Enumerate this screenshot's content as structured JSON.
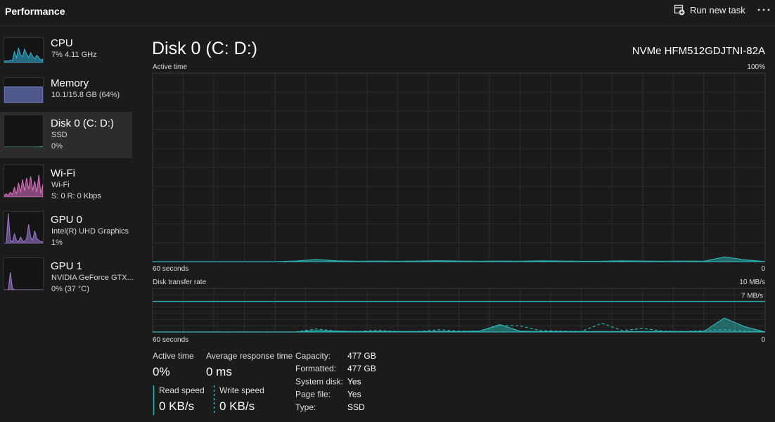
{
  "header": {
    "title": "Performance",
    "run_task": "Run new task"
  },
  "sidebar": [
    {
      "name": "CPU",
      "details": [
        "7%  4.11 GHz"
      ],
      "color": "#35b3d8",
      "spark": [
        5,
        8,
        6,
        10,
        7,
        45,
        20,
        60,
        30,
        25,
        55,
        35,
        20,
        40,
        25,
        15,
        30,
        20,
        10,
        15
      ]
    },
    {
      "name": "Memory",
      "details": [
        "10.1/15.8 GB (64%)"
      ],
      "color": "#7d8ee6",
      "spark": [
        64,
        64,
        64,
        64,
        64,
        64,
        64,
        64,
        64,
        64,
        64,
        64,
        64,
        64,
        64,
        64,
        64,
        64,
        64,
        64
      ]
    },
    {
      "name": "Disk 0 (C: D:)",
      "details": [
        "SSD",
        "0%"
      ],
      "color": "#3ba88f",
      "selected": true,
      "spark": [
        0,
        0,
        0,
        0,
        0,
        0,
        0,
        0,
        0,
        0,
        0,
        0,
        0,
        0,
        0,
        0,
        0,
        0,
        1,
        0
      ]
    },
    {
      "name": "Wi-Fi",
      "details": [
        "Wi-Fi",
        "S: 0 R: 0 Kbps"
      ],
      "color": "#e072c6",
      "spark": [
        5,
        10,
        5,
        15,
        8,
        30,
        10,
        45,
        15,
        55,
        20,
        60,
        25,
        65,
        20,
        50,
        15,
        70,
        10,
        40
      ]
    },
    {
      "name": "GPU 0",
      "details": [
        "Intel(R) UHD Graphics",
        "1%"
      ],
      "color": "#a07ad8",
      "spark": [
        0,
        0,
        95,
        10,
        5,
        30,
        10,
        5,
        20,
        8,
        5,
        15,
        60,
        20,
        10,
        40,
        15,
        10,
        5,
        5
      ]
    },
    {
      "name": "GPU 1",
      "details": [
        "NVIDIA GeForce GTX...",
        "0%  (37 °C)"
      ],
      "color": "#a07ad8",
      "spark": [
        0,
        0,
        0,
        55,
        5,
        0,
        0,
        0,
        0,
        0,
        0,
        0,
        0,
        0,
        0,
        0,
        0,
        0,
        0,
        0
      ]
    }
  ],
  "disk": {
    "title": "Disk 0 (C: D:)",
    "model": "NVMe HFM512GDJTNI-82A",
    "active_chart": {
      "label": "Active time",
      "max_label": "100%",
      "time_label": "60 seconds",
      "min_label": "0",
      "ylim": [
        0,
        100
      ],
      "color": "#2bb3b3",
      "values": [
        0,
        0,
        0,
        0,
        0,
        0,
        0,
        0.3,
        1.2,
        0.4,
        0.2,
        0.3,
        0.2,
        0.3,
        0.5,
        0.3,
        0.2,
        0.3,
        0.2,
        0.4,
        0.3,
        0.2,
        0.2,
        0.4,
        0.3,
        0.2,
        0.3,
        0.2,
        2.5,
        1.0,
        0
      ]
    },
    "transfer_chart": {
      "label": "Disk transfer rate",
      "max_label": "10 MB/s",
      "ref_label": "7 MB/s",
      "ref": 7,
      "time_label": "60 seconds",
      "min_label": "0",
      "ylim": [
        0,
        10
      ],
      "color": "#2bb3b3",
      "read": [
        0,
        0,
        0,
        0,
        0,
        0,
        0,
        0,
        0.3,
        0.2,
        0.1,
        0.1,
        0.1,
        0.1,
        0.1,
        0.1,
        0.2,
        1.7,
        0.2,
        0.1,
        0.1,
        0.1,
        0.1,
        0.1,
        0.1,
        0.1,
        0.1,
        0.1,
        3.2,
        1.2,
        0
      ],
      "write": [
        0,
        0,
        0,
        0,
        0,
        0,
        0,
        0,
        0.7,
        0.2,
        0.1,
        0.4,
        0.1,
        0.1,
        0.5,
        0.2,
        0.2,
        1.5,
        1.4,
        0.3,
        0.2,
        0.1,
        2.0,
        0.3,
        0.8,
        0.2,
        0.1,
        0.3,
        0.5,
        0.2,
        0
      ]
    },
    "stats": {
      "active_time": {
        "label": "Active time",
        "value": "0%"
      },
      "response": {
        "label": "Average response time",
        "value": "0 ms"
      },
      "read": {
        "label": "Read speed",
        "value": "0 KB/s"
      },
      "write": {
        "label": "Write speed",
        "value": "0 KB/s"
      },
      "properties": [
        [
          "Capacity:",
          "477 GB"
        ],
        [
          "Formatted:",
          "477 GB"
        ],
        [
          "System disk:",
          "Yes"
        ],
        [
          "Page file:",
          "Yes"
        ],
        [
          "Type:",
          "SSD"
        ]
      ]
    }
  }
}
